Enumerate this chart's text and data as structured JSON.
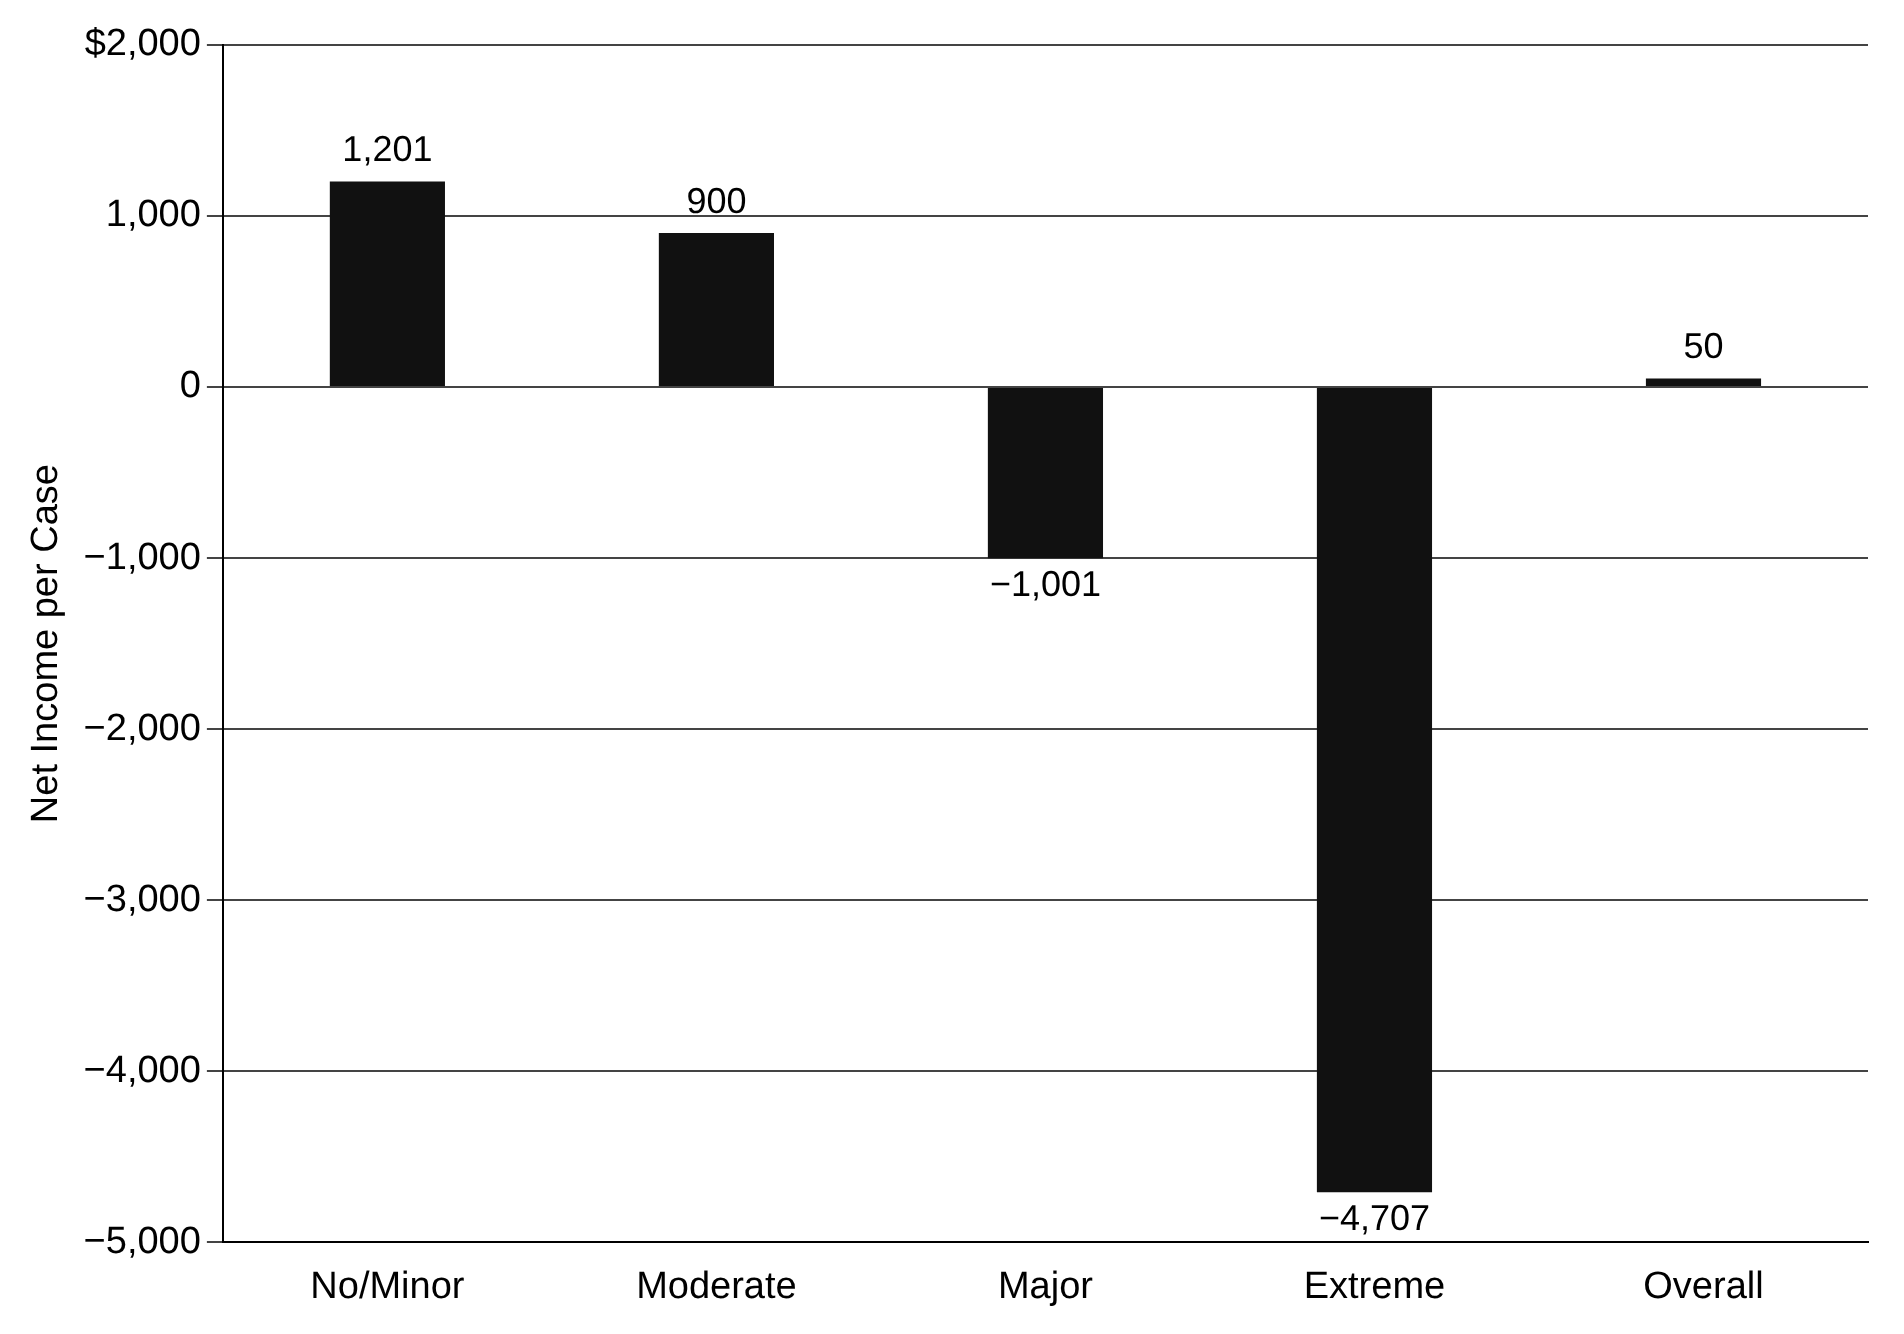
{
  "chart_data": {
    "type": "bar",
    "ylabel": "Net Income per Case",
    "categories": [
      "No/Minor",
      "Moderate",
      "Major",
      "Extreme",
      "Overall"
    ],
    "values": [
      1201,
      900,
      -1001,
      -4707,
      50
    ],
    "value_labels": [
      "1,201",
      "900",
      "−1,001",
      "−4,707",
      "50"
    ],
    "color": "#111111",
    "ylim": [
      -5000,
      2000
    ],
    "yticks": [
      {
        "value": 2000,
        "label": "$2,000"
      },
      {
        "value": 1000,
        "label": "1,000"
      },
      0,
      {
        "value": -1000,
        "label": "−1,000"
      },
      {
        "value": -2000,
        "label": "−2,000"
      },
      {
        "value": -3000,
        "label": "−3,000"
      },
      {
        "value": -4000,
        "label": "−4,000"
      },
      {
        "value": -5000,
        "label": "−5,000"
      }
    ],
    "grid": "y"
  }
}
